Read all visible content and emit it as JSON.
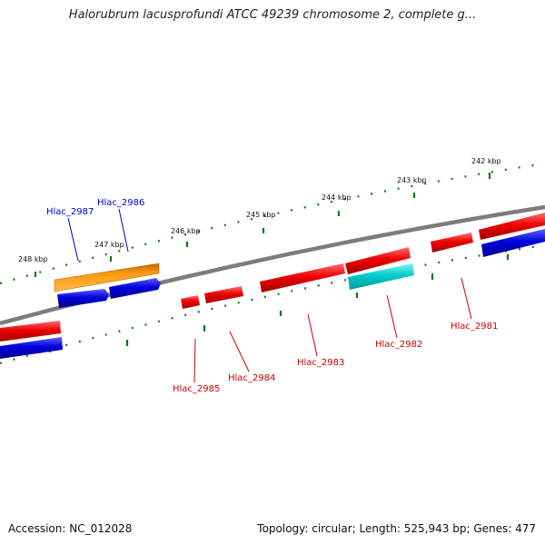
{
  "title": "Halorubrum lacusprofundi ATCC 49239 chromosome 2, complete g...",
  "footer": {
    "accession": "Accession: NC_012028",
    "topology": "Topology: circular; Length: 525,943 bp; Genes: 477"
  },
  "scale_labels": [
    "248 kbp",
    "247 kbp",
    "246 kbp",
    "245 kbp",
    "244 kbp",
    "243 kbp",
    "242 kbp"
  ],
  "gene_labels_top": [
    "Hlac_2987",
    "Hlac_2986"
  ],
  "gene_labels_bottom": [
    "Hlac_2985",
    "Hlac_2984",
    "Hlac_2983",
    "Hlac_2982",
    "Hlac_2981"
  ],
  "colors": {
    "forward_gene": "#ee0000",
    "reverse_gene": "#0000dd",
    "rna_gene": "#ff8c00",
    "highlight_gene": "#00cccc",
    "backbone": "#808080",
    "tick": "#0a7a0a",
    "label_top": "#0000cc",
    "label_bottom": "#cc0000"
  }
}
